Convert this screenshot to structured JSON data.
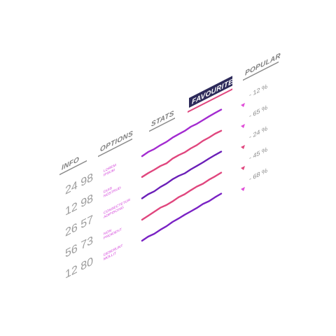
{
  "headers": {
    "info": "INFO",
    "options": "OPTIONS",
    "stats": "STATS",
    "favourite": "FAVOURITE",
    "popular": "POPULAR"
  },
  "rows": [
    {
      "info": "24 98",
      "option_line1": "LOREM",
      "option_line2": "IPSUM",
      "trend_color": "#a32bd0",
      "popular_color": "#e04cd8",
      "popular": "- 12 %",
      "trend": [
        0.18,
        0.32,
        0.3,
        0.4,
        0.42,
        0.58,
        0.62,
        0.64,
        0.78,
        0.76,
        0.84,
        0.92,
        0.97,
        1.0
      ]
    },
    {
      "info": "12 98",
      "option_line1": "DUIS",
      "option_line2": "NOSTRUD",
      "trend_color": "#e0467e",
      "popular_color": "#e04cd8",
      "popular": "- 65 %",
      "trend": [
        0.2,
        0.3,
        0.34,
        0.42,
        0.36,
        0.58,
        0.62,
        0.58,
        0.7,
        0.72,
        0.88,
        0.9,
        1.0,
        0.98
      ]
    },
    {
      "info": "26 57",
      "option_line1": "CONSECTETUR",
      "option_line2": "ADIPISCING",
      "trend_color": "#6b1fb8",
      "popular_color": "#e0467e",
      "popular": "- 24 %",
      "trend": [
        0.15,
        0.28,
        0.26,
        0.42,
        0.46,
        0.62,
        0.66,
        0.58,
        0.7,
        0.74,
        0.8,
        0.9,
        0.96,
        1.0
      ]
    },
    {
      "info": "56 73",
      "option_line1": "NON",
      "option_line2": "PROIDENT",
      "trend_color": "#e0467e",
      "popular_color": "#e0467e",
      "popular": "- 45 %",
      "trend": [
        0.1,
        0.22,
        0.34,
        0.46,
        0.4,
        0.48,
        0.62,
        0.6,
        0.72,
        0.8,
        0.76,
        0.88,
        0.92,
        1.0
      ]
    },
    {
      "info": "12 80",
      "option_line1": "DESERUNT",
      "option_line2": "MOLLIT",
      "trend_color": "#7a22c4",
      "popular_color": "#e04cd8",
      "popular": "- 68 %",
      "trend": [
        0.1,
        0.24,
        0.2,
        0.32,
        0.38,
        0.54,
        0.58,
        0.66,
        0.7,
        0.74,
        0.86,
        0.82,
        0.94,
        1.0
      ]
    }
  ],
  "colors": {
    "header_text": "#7d7d7d",
    "underline": "#8a8a8a",
    "favourite_bg": "#2d2a5a",
    "favourite_accent": "#e0467e",
    "info_text": "#9c9c9c",
    "option_text": "#d13bd8",
    "popular_text": "#8a8a8a"
  },
  "icons": {
    "popular_marker": "triangle-marker-icon"
  }
}
